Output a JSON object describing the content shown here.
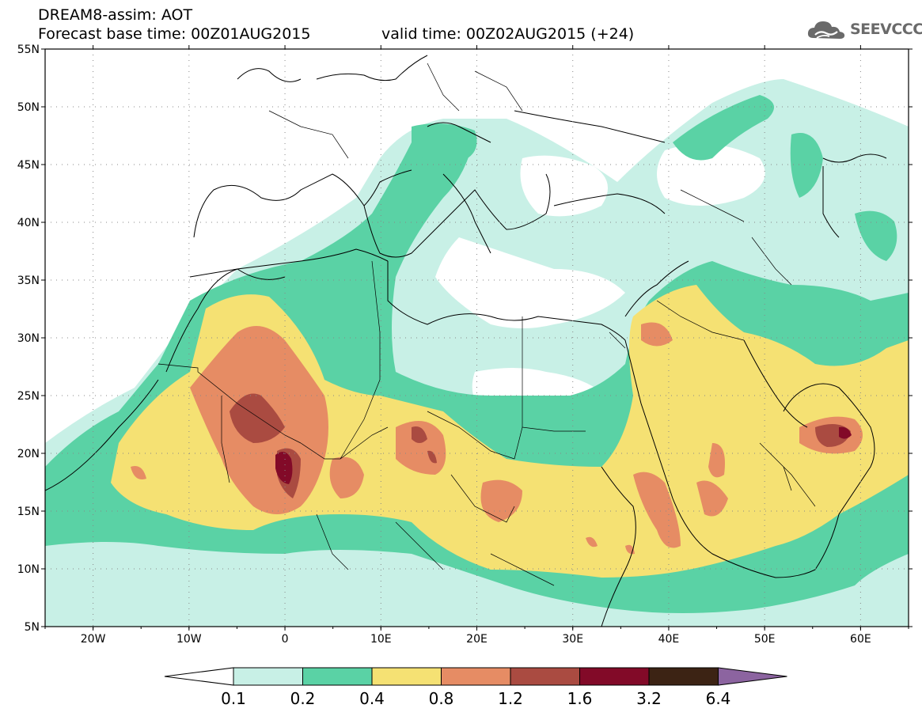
{
  "header": {
    "title": "DREAM8-assim: AOT",
    "base_time": "Forecast base time: 00Z01AUG2015",
    "valid_time": "valid time: 00Z02AUG2015 (+24)",
    "logo_text": "SEEVCCC"
  },
  "map": {
    "lat_labels": [
      "55N",
      "50N",
      "45N",
      "40N",
      "35N",
      "30N",
      "25N",
      "20N",
      "15N",
      "10N",
      "5N"
    ],
    "lon_labels": [
      "20W",
      "10W",
      "0",
      "10E",
      "20E",
      "30E",
      "40E",
      "50E",
      "60E"
    ],
    "extent": {
      "lon": [
        -25,
        65
      ],
      "lat": [
        5,
        55
      ]
    },
    "variable": "Aerosol Optical Thickness"
  },
  "colorbar": {
    "labels": [
      "0.1",
      "0.2",
      "0.4",
      "0.8",
      "1.2",
      "1.6",
      "3.2",
      "6.4"
    ],
    "colors": [
      "#ffffff",
      "#c8f0e6",
      "#5ad2a5",
      "#f5e173",
      "#e68c64",
      "#aa4b41",
      "#820a28",
      "#3c2314",
      "#8c64a0"
    ]
  },
  "colors": {
    "level_0": "#ffffff",
    "level_1": "#c8f0e6",
    "level_2": "#5ad2a5",
    "level_3": "#f5e173",
    "level_4": "#e68c64",
    "level_5": "#aa4b41",
    "level_6": "#820a28"
  }
}
